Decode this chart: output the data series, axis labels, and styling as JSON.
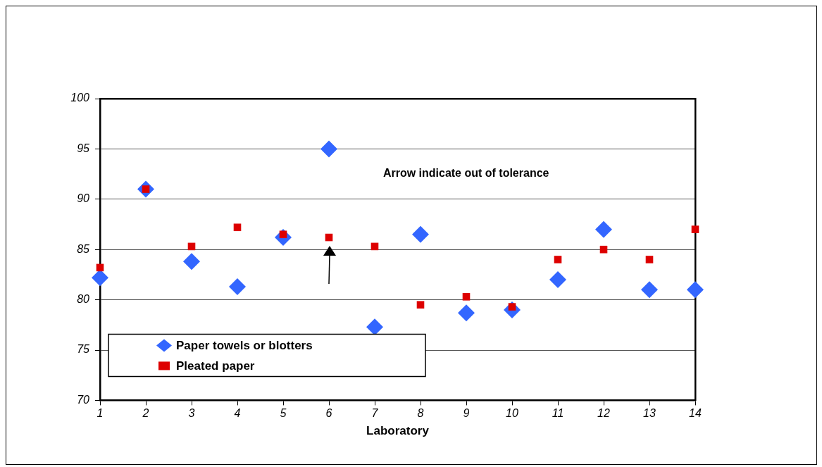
{
  "chart_data": {
    "type": "scatter",
    "xlabel": "Laboratory",
    "x": [
      1,
      2,
      3,
      4,
      5,
      6,
      7,
      8,
      9,
      10,
      11,
      12,
      13,
      14
    ],
    "xlim": [
      1,
      14
    ],
    "xticks": [
      1,
      2,
      3,
      4,
      5,
      6,
      7,
      8,
      9,
      10,
      11,
      12,
      13,
      14
    ],
    "ylim": [
      70,
      100
    ],
    "yticks": [
      70,
      75,
      80,
      85,
      90,
      95,
      100
    ],
    "grid": "y",
    "legend": "bottom left",
    "annotations": [
      "Arrow indicate out of tolerance"
    ],
    "series": [
      {
        "name": "Paper towels or blotters",
        "color": "#3366ff",
        "marker": "diamond",
        "values": [
          82.2,
          91.0,
          83.8,
          81.3,
          86.2,
          95.0,
          77.3,
          86.5,
          78.7,
          79.0,
          82.0,
          87.0,
          81.0,
          81.0
        ]
      },
      {
        "name": "Pleated paper",
        "color": "#dd0000",
        "marker": "square",
        "values": [
          83.2,
          91.0,
          85.3,
          87.2,
          86.5,
          86.2,
          85.3,
          79.5,
          80.3,
          79.3,
          84.0,
          85.0,
          84.0,
          87.0
        ]
      }
    ]
  }
}
